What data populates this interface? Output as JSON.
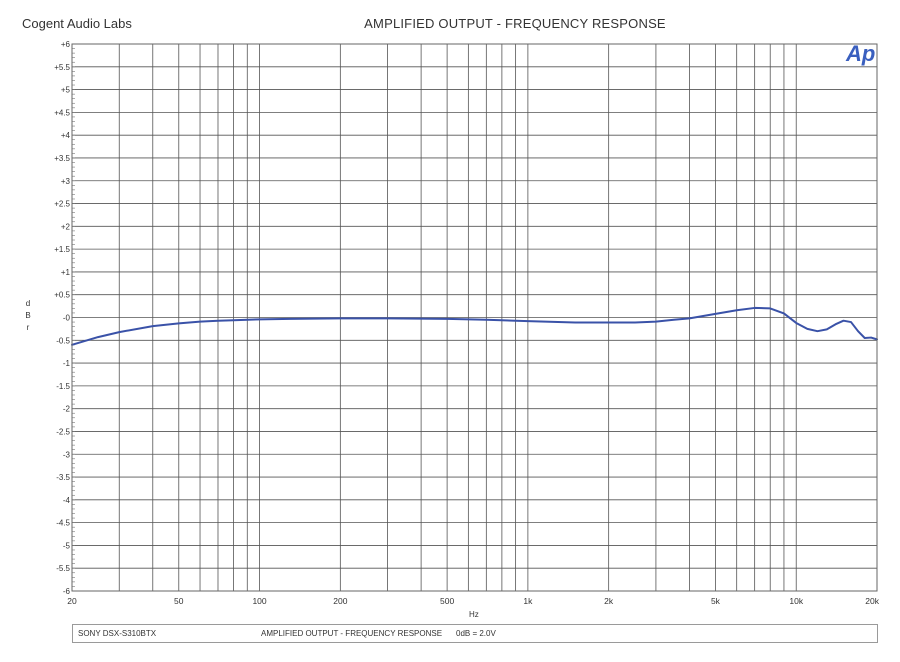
{
  "header": {
    "company": "Cogent Audio Labs",
    "title": "AMPLIFIED OUTPUT - FREQUENCY RESPONSE"
  },
  "footer": {
    "device": "SONY DSX-S310BTX",
    "description": "AMPLIFIED OUTPUT  -  FREQUENCY RESPONSE",
    "reference": "0dB = 2.0V"
  },
  "logo": {
    "text": "Ap",
    "color": "#3a5fbf"
  },
  "chart_data": {
    "type": "line",
    "title": "AMPLIFIED OUTPUT - FREQUENCY RESPONSE",
    "xlabel": "Hz",
    "ylabel": "dBr",
    "xscale": "log",
    "xlim": [
      20,
      20000
    ],
    "ylim": [
      -6,
      6
    ],
    "grid": true,
    "line_color": "#3a52a8",
    "x_ticks": [
      {
        "value": 20,
        "label": "20"
      },
      {
        "value": 50,
        "label": "50"
      },
      {
        "value": 100,
        "label": "100"
      },
      {
        "value": 200,
        "label": "200"
      },
      {
        "value": 500,
        "label": "500"
      },
      {
        "value": 1000,
        "label": "1k"
      },
      {
        "value": 2000,
        "label": "2k"
      },
      {
        "value": 5000,
        "label": "5k"
      },
      {
        "value": 10000,
        "label": "10k"
      },
      {
        "value": 20000,
        "label": "20k"
      }
    ],
    "y_ticks": [
      "+6",
      "+5.5",
      "+5",
      "+4.5",
      "+4",
      "+3.5",
      "+3",
      "+2.5",
      "+2",
      "+1.5",
      "+1",
      "+0.5",
      "-0",
      "-0.5",
      "-1",
      "-1.5",
      "-2",
      "-2.5",
      "-3",
      "-3.5",
      "-4",
      "-4.5",
      "-5",
      "-5.5",
      "-6"
    ],
    "series": [
      {
        "x": [
          20,
          25,
          30,
          40,
          50,
          60,
          70,
          80,
          100,
          130,
          200,
          300,
          500,
          700,
          1000,
          1500,
          2000,
          2500,
          3000,
          3500,
          4000,
          5000,
          6000,
          7000,
          8000,
          9000,
          10000,
          11000,
          12000,
          13000,
          14000,
          15000,
          16000,
          17000,
          18000,
          19000,
          20000
        ],
        "y": [
          -0.6,
          -0.43,
          -0.32,
          -0.19,
          -0.13,
          -0.09,
          -0.07,
          -0.06,
          -0.04,
          -0.03,
          -0.02,
          -0.02,
          -0.03,
          -0.05,
          -0.08,
          -0.11,
          -0.11,
          -0.11,
          -0.09,
          -0.05,
          -0.02,
          0.08,
          0.16,
          0.21,
          0.2,
          0.09,
          -0.12,
          -0.25,
          -0.3,
          -0.26,
          -0.15,
          -0.07,
          -0.1,
          -0.3,
          -0.45,
          -0.44,
          -0.48
        ]
      }
    ]
  }
}
